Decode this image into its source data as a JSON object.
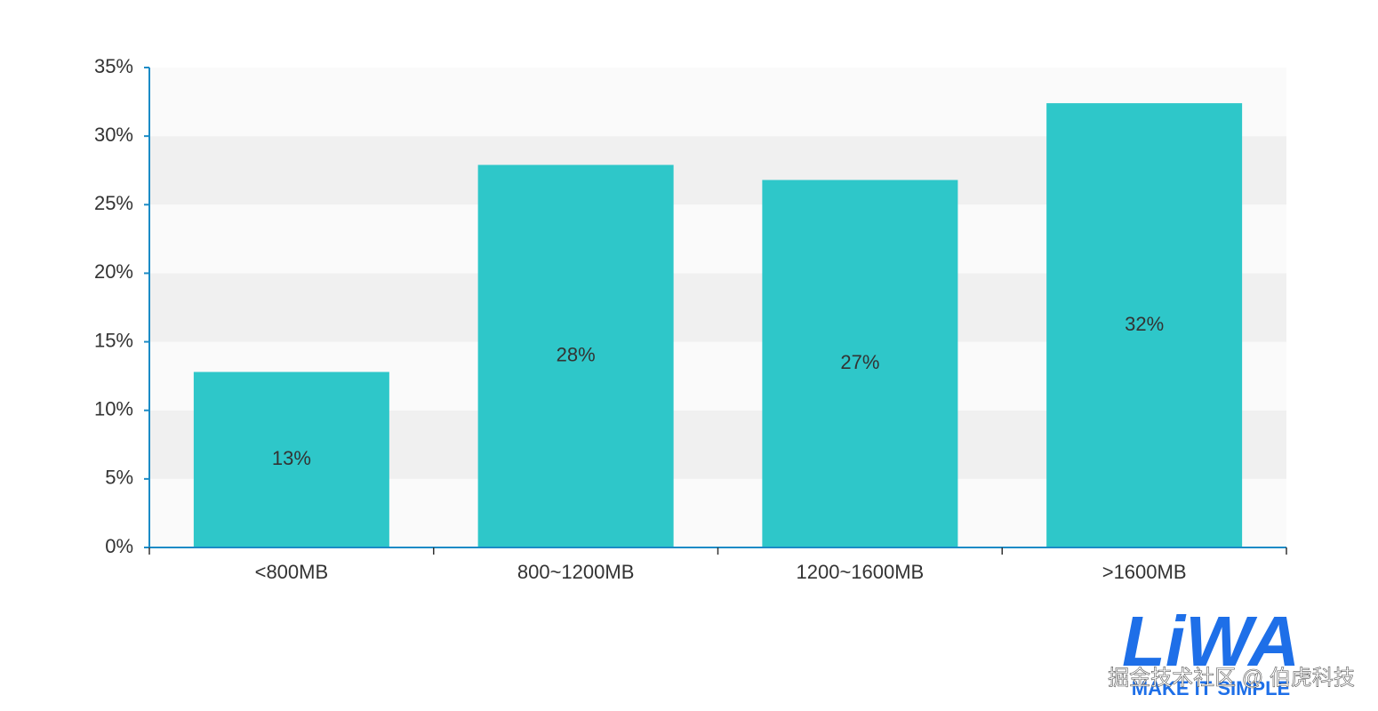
{
  "chart_data": {
    "type": "bar",
    "categories": [
      "<800MB",
      "800~1200MB",
      "1200~1600MB",
      ">1600MB"
    ],
    "values": [
      12.8,
      27.9,
      26.8,
      32.4
    ],
    "value_labels": [
      "13%",
      "28%",
      "27%",
      "32%"
    ],
    "color": "#2ec7c9",
    "axis_color": "#1b8bc6",
    "ylim": [
      0,
      35
    ],
    "yticks": [
      {
        "value": 0,
        "label": "0%"
      },
      {
        "value": 5,
        "label": "5%"
      },
      {
        "value": 10,
        "label": "10%"
      },
      {
        "value": 15,
        "label": "15%"
      },
      {
        "value": 20,
        "label": "20%"
      },
      {
        "value": 25,
        "label": "25%"
      },
      {
        "value": 30,
        "label": "30%"
      },
      {
        "value": 35,
        "label": "35%"
      }
    ],
    "split_area": true,
    "split_area_colors": [
      "#fafafa",
      "#f0f0f0"
    ]
  },
  "watermark": {
    "logo": "LiWA",
    "tagline": "MAKE IT SIMPLE",
    "credit": "掘金技术社区 @ 伯虎科技"
  }
}
